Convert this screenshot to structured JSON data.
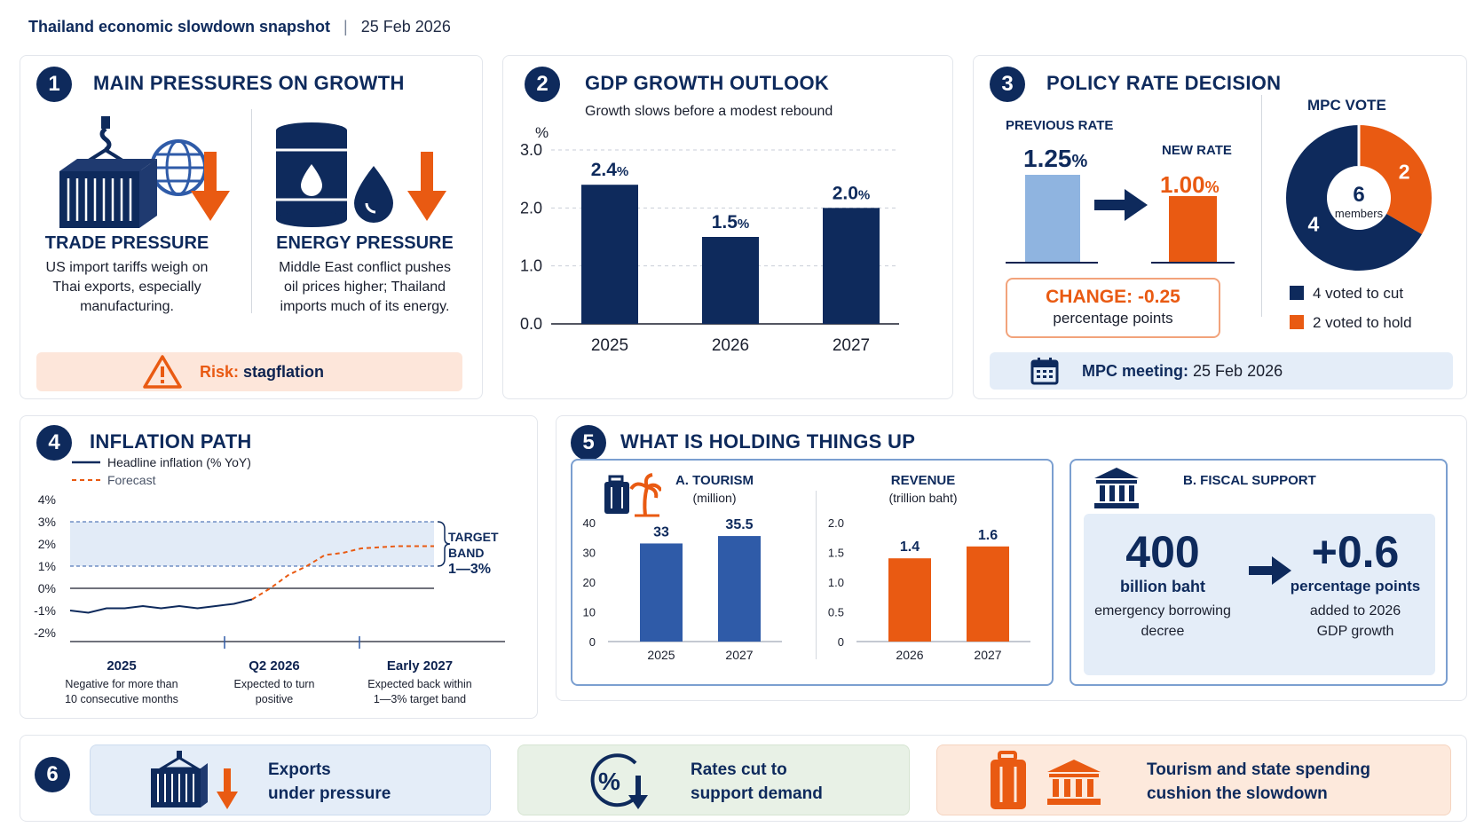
{
  "header": {
    "title": "Thailand economic slowdown snapshot",
    "separator": "|",
    "date": "25 Feb 2026"
  },
  "colors": {
    "navy": "#0e2a5c",
    "orange": "#e95a12",
    "light_blue": "#8fb4e0",
    "band": "#e2ebf7",
    "blue": "#2f5ba8"
  },
  "s1": {
    "number": "1",
    "title": "MAIN PRESSURES ON GROWTH",
    "trade": {
      "icon": "cargo-container-globe-icon",
      "title": "TRADE PRESSURE",
      "text": [
        "US import tariffs weigh on",
        "Thai exports, especially",
        "manufacturing."
      ]
    },
    "energy": {
      "icon": "oil-barrel-drop-icon",
      "title": "ENERGY PRESSURE",
      "text": [
        "Middle East conflict pushes",
        "oil prices higher; Thailand",
        "imports much of its energy."
      ]
    },
    "risk": {
      "label": "Risk:",
      "value": "stagflation"
    }
  },
  "s2": {
    "number": "2",
    "title": "GDP GROWTH OUTLOOK",
    "subtitle": "Growth slows before a modest rebound",
    "ylabel": "%",
    "yticks": [
      "3.0",
      "2.0",
      "1.0",
      "0.0"
    ],
    "bar_labels": [
      "2.4",
      "1.5",
      "2.0"
    ],
    "unit": "%"
  },
  "s3": {
    "number": "3",
    "title": "POLICY RATE DECISION",
    "prev_label": "PREVIOUS RATE",
    "prev_value": "1.25",
    "new_label": "NEW RATE",
    "new_value": "1.00",
    "unit": "%",
    "change_label": "CHANGE:",
    "change_value": "-0.25",
    "change_unit": "percentage points",
    "vote_title": "MPC VOTE",
    "vote_cut": "4",
    "vote_hold": "2",
    "vote_total": "6",
    "vote_total_label": "members",
    "legend_cut": "4 voted to cut",
    "legend_hold": "2 voted to hold",
    "meeting_label": "MPC meeting:",
    "meeting_date": "25 Feb 2026"
  },
  "s4": {
    "number": "4",
    "title": "INFLATION PATH",
    "legend_actual": "Headline inflation (% YoY)",
    "legend_forecast": "Forecast",
    "yticks": [
      "4%",
      "3%",
      "2%",
      "1%",
      "0%",
      "-1%",
      "-2%"
    ],
    "band_label": [
      "TARGET",
      "BAND",
      "1—3%"
    ],
    "periods": [
      {
        "label": "2025",
        "note": [
          "Negative for more than",
          "10 consecutive months"
        ]
      },
      {
        "label": "Q2 2026",
        "note": [
          "Expected to turn",
          "positive"
        ]
      },
      {
        "label": "Early 2027",
        "note": [
          "Expected back within",
          "1—3% target band"
        ]
      }
    ]
  },
  "s5": {
    "number": "5",
    "title": "WHAT IS HOLDING THINGS UP",
    "tourism_title": "A. TOURISM",
    "tourism_sub": "(million)",
    "tourism_yticks": [
      "40",
      "30",
      "20",
      "10",
      "0"
    ],
    "revenue_title": "REVENUE",
    "revenue_sub": "(trillion baht)",
    "revenue_yticks": [
      "2.0",
      "1.5",
      "1.0",
      "0.5",
      "0"
    ],
    "fiscal_title": "B. FISCAL SUPPORT",
    "fiscal_amount": "400",
    "fiscal_amount_unit": "billion baht",
    "fiscal_amount_desc": [
      "emergency borrowing",
      "decree"
    ],
    "fiscal_effect": "+0.6",
    "fiscal_effect_unit": "percentage points",
    "fiscal_effect_desc": [
      "added to 2026",
      "GDP growth"
    ]
  },
  "s6": {
    "number": "6",
    "items": [
      {
        "icon": "container-down-arrow-icon",
        "lines": [
          "Exports",
          "under pressure"
        ]
      },
      {
        "icon": "percent-down-icon",
        "lines": [
          "Rates cut to",
          "support demand"
        ]
      },
      {
        "icon": "suitcase-bank-icon",
        "lines": [
          "Tourism and state spending",
          "cushion the slowdown"
        ]
      }
    ]
  },
  "chart_data": [
    {
      "type": "bar",
      "title": "GDP GROWTH OUTLOOK",
      "subtitle": "Growth slows before a modest rebound",
      "ylabel": "%",
      "categories": [
        "2025",
        "2026",
        "2027"
      ],
      "values": [
        2.4,
        1.5,
        2.0
      ],
      "ylim": [
        0,
        3.0
      ],
      "grid": true
    },
    {
      "type": "bar",
      "title": "A. TOURISM",
      "subtitle": "(million)",
      "categories": [
        "2025",
        "2027"
      ],
      "values": [
        33,
        35.5
      ],
      "ylim": [
        0,
        40
      ]
    },
    {
      "type": "bar",
      "title": "REVENUE",
      "subtitle": "(trillion baht)",
      "categories": [
        "2026",
        "2027"
      ],
      "values": [
        1.4,
        1.6
      ],
      "ylim": [
        0,
        2.0
      ]
    },
    {
      "type": "line",
      "title": "INFLATION PATH",
      "ylim": [
        -2,
        4
      ],
      "target_band": [
        1,
        3
      ],
      "series": [
        {
          "name": "Headline inflation (% YoY)",
          "x": [
            0,
            0.05,
            0.1,
            0.15,
            0.2,
            0.25,
            0.3,
            0.35,
            0.4,
            0.45,
            0.5
          ],
          "values": [
            -1.0,
            -1.1,
            -0.9,
            -0.9,
            -0.8,
            -0.9,
            -0.8,
            -0.9,
            -0.8,
            -0.7,
            -0.5
          ]
        },
        {
          "name": "Forecast",
          "x": [
            0.5,
            0.55,
            0.6,
            0.65,
            0.7,
            0.75,
            0.8,
            0.9,
            1.0
          ],
          "values": [
            -0.5,
            0.0,
            0.6,
            1.0,
            1.5,
            1.6,
            1.8,
            1.9,
            1.9
          ]
        }
      ]
    },
    {
      "type": "pie",
      "title": "MPC VOTE",
      "categories": [
        "4 voted to cut",
        "2 voted to hold"
      ],
      "values": [
        4,
        2
      ]
    }
  ]
}
